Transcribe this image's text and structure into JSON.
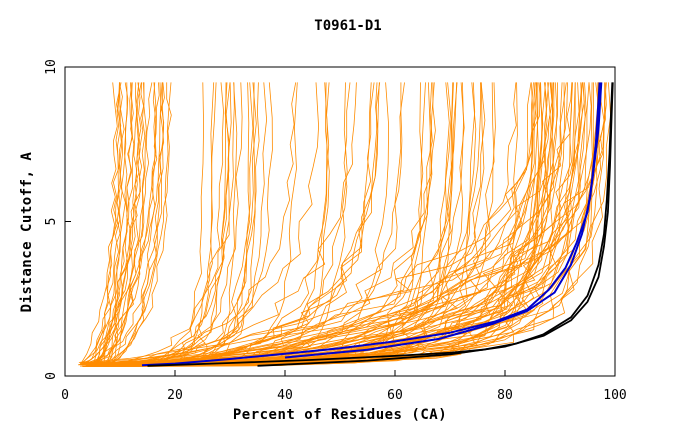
{
  "chart_data": {
    "type": "line",
    "title": "T0961-D1",
    "xlabel": "Percent of Residues (CA)",
    "ylabel": "Distance Cutoff, A",
    "xlim": [
      0,
      100
    ],
    "ylim": [
      0,
      10
    ],
    "x_ticks": [
      {
        "value": 0,
        "label": "0"
      },
      {
        "value": 20,
        "label": "20"
      },
      {
        "value": 40,
        "label": "40"
      },
      {
        "value": 60,
        "label": "60"
      },
      {
        "value": 80,
        "label": "80"
      },
      {
        "value": 100,
        "label": "100"
      }
    ],
    "y_ticks": [
      {
        "value": 0,
        "label": "0"
      },
      {
        "value": 5,
        "label": "5"
      },
      {
        "value": 10,
        "label": "10"
      }
    ],
    "colors": {
      "background_series": "#ff8c00",
      "highlight_blue": "#0000cc",
      "highlight_black": "#000000"
    },
    "background_series_count": 140,
    "series": [
      {
        "name": "highlight-blue",
        "color": "#0000cc",
        "points": [
          [
            14,
            0.35
          ],
          [
            20,
            0.4
          ],
          [
            30,
            0.55
          ],
          [
            40,
            0.72
          ],
          [
            50,
            0.9
          ],
          [
            60,
            1.12
          ],
          [
            70,
            1.4
          ],
          [
            78,
            1.75
          ],
          [
            84,
            2.15
          ],
          [
            88,
            2.8
          ],
          [
            91,
            3.5
          ],
          [
            93,
            4.3
          ],
          [
            95,
            5.3
          ],
          [
            96,
            6.5
          ],
          [
            97,
            8.0
          ],
          [
            97.5,
            9.5
          ]
        ]
      },
      {
        "name": "highlight-black-1",
        "color": "#000000",
        "points": [
          [
            15,
            0.33
          ],
          [
            30,
            0.42
          ],
          [
            45,
            0.52
          ],
          [
            60,
            0.65
          ],
          [
            70,
            0.75
          ],
          [
            76,
            0.85
          ],
          [
            82,
            1.05
          ],
          [
            87,
            1.35
          ],
          [
            92,
            1.9
          ],
          [
            95,
            2.6
          ],
          [
            97,
            3.6
          ],
          [
            98,
            4.6
          ],
          [
            98.5,
            5.7
          ],
          [
            99,
            7.2
          ],
          [
            99.3,
            8.6
          ],
          [
            99.5,
            9.5
          ]
        ]
      },
      {
        "name": "highlight-black-2",
        "color": "#000000",
        "points": [
          [
            35,
            0.33
          ],
          [
            55,
            0.5
          ],
          [
            70,
            0.7
          ],
          [
            80,
            0.95
          ],
          [
            87,
            1.3
          ],
          [
            92,
            1.8
          ],
          [
            95,
            2.4
          ],
          [
            97,
            3.2
          ],
          [
            98,
            4.2
          ],
          [
            98.7,
            5.3
          ],
          [
            99.1,
            6.8
          ],
          [
            99.4,
            8.5
          ],
          [
            99.6,
            9.5
          ]
        ]
      },
      {
        "name": "highlight-blue-2",
        "color": "#0000cc",
        "points": [
          [
            40,
            0.6
          ],
          [
            55,
            0.85
          ],
          [
            68,
            1.2
          ],
          [
            78,
            1.7
          ],
          [
            84,
            2.1
          ],
          [
            89,
            2.7
          ],
          [
            92,
            3.6
          ],
          [
            94,
            4.6
          ],
          [
            95.5,
            5.8
          ],
          [
            96.5,
            7.5
          ],
          [
            97.2,
            9.5
          ]
        ]
      }
    ]
  }
}
